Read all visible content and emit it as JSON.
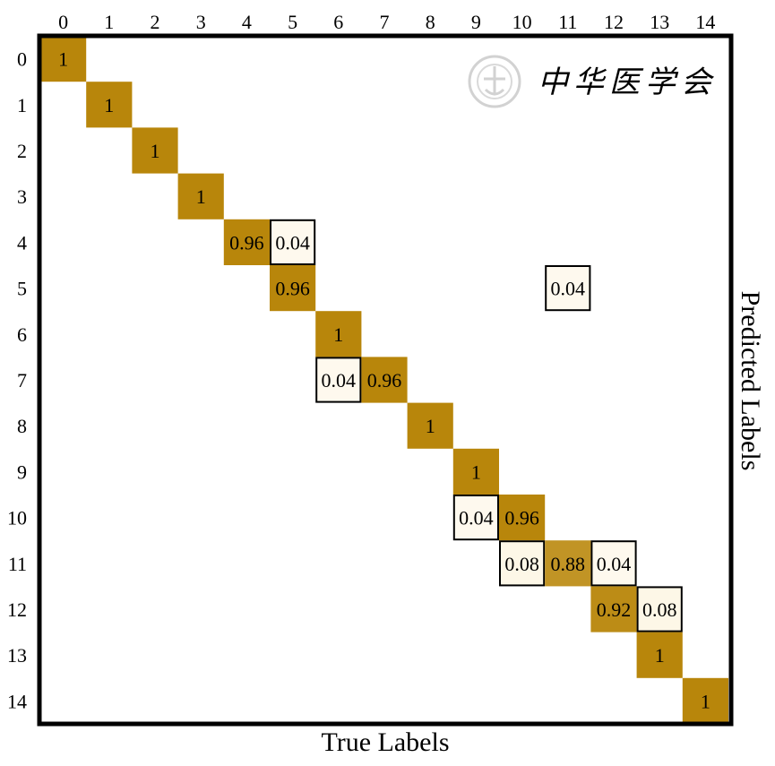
{
  "chart_data": {
    "type": "heatmap",
    "title": "",
    "xlabel": "True Labels",
    "ylabel": "Predicted Labels",
    "x_ticks": [
      "0",
      "1",
      "2",
      "3",
      "4",
      "5",
      "6",
      "7",
      "8",
      "9",
      "10",
      "11",
      "12",
      "13",
      "14"
    ],
    "y_ticks": [
      "0",
      "1",
      "2",
      "3",
      "4",
      "5",
      "6",
      "7",
      "8",
      "9",
      "10",
      "11",
      "12",
      "13",
      "14"
    ],
    "x_tick_position": "top",
    "y_label_position": "right",
    "value_range": [
      0,
      1
    ],
    "grid": false,
    "cells": [
      {
        "row": 0,
        "col": 0,
        "value": 1,
        "label": "1"
      },
      {
        "row": 1,
        "col": 1,
        "value": 1,
        "label": "1"
      },
      {
        "row": 2,
        "col": 2,
        "value": 1,
        "label": "1"
      },
      {
        "row": 3,
        "col": 3,
        "value": 1,
        "label": "1"
      },
      {
        "row": 4,
        "col": 4,
        "value": 0.96,
        "label": "0.96"
      },
      {
        "row": 4,
        "col": 5,
        "value": 0.04,
        "label": "0.04"
      },
      {
        "row": 5,
        "col": 5,
        "value": 0.96,
        "label": "0.96"
      },
      {
        "row": 5,
        "col": 11,
        "value": 0.04,
        "label": "0.04"
      },
      {
        "row": 6,
        "col": 6,
        "value": 1,
        "label": "1"
      },
      {
        "row": 7,
        "col": 6,
        "value": 0.04,
        "label": "0.04"
      },
      {
        "row": 7,
        "col": 7,
        "value": 0.96,
        "label": "0.96"
      },
      {
        "row": 8,
        "col": 8,
        "value": 1,
        "label": "1"
      },
      {
        "row": 9,
        "col": 9,
        "value": 1,
        "label": "1"
      },
      {
        "row": 10,
        "col": 9,
        "value": 0.04,
        "label": "0.04"
      },
      {
        "row": 10,
        "col": 10,
        "value": 0.96,
        "label": "0.96"
      },
      {
        "row": 11,
        "col": 10,
        "value": 0.08,
        "label": "0.08"
      },
      {
        "row": 11,
        "col": 11,
        "value": 0.88,
        "label": "0.88"
      },
      {
        "row": 11,
        "col": 12,
        "value": 0.04,
        "label": "0.04"
      },
      {
        "row": 12,
        "col": 12,
        "value": 0.92,
        "label": "0.92"
      },
      {
        "row": 12,
        "col": 13,
        "value": 0.08,
        "label": "0.08"
      },
      {
        "row": 13,
        "col": 13,
        "value": 1,
        "label": "1"
      },
      {
        "row": 14,
        "col": 14,
        "value": 1,
        "label": "1"
      }
    ],
    "colors": {
      "high": "#b8860b",
      "mid": "#c59a30",
      "low": "#fdf6e4",
      "frame": "#000000"
    }
  },
  "watermark": {
    "text": "中华医学会",
    "color": "#cfcfcf"
  }
}
